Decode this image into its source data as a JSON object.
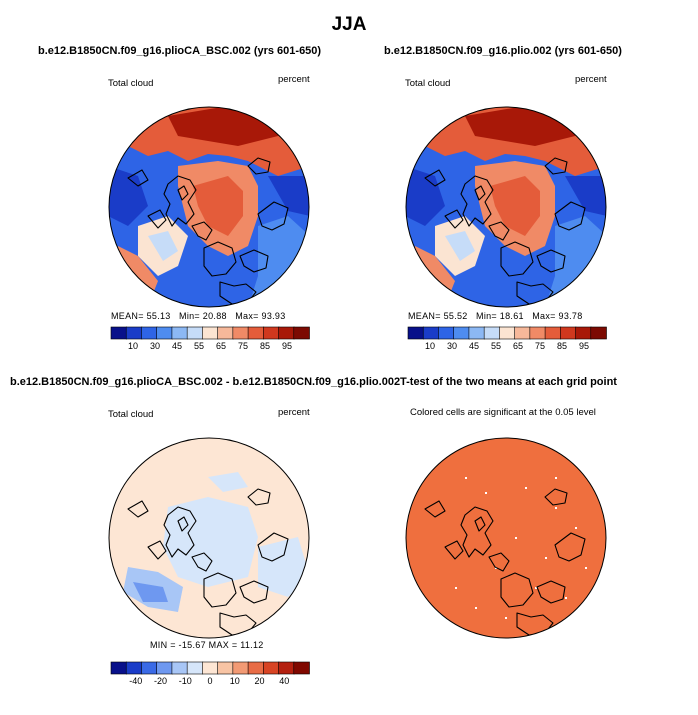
{
  "page": {
    "title": "JJA"
  },
  "panels": [
    {
      "id": "p1",
      "title": "b.e12.B1850CN.f09_g16.plioCA_BSC.002 (yrs 601-650)",
      "left_label": "Total cloud",
      "right_label": "percent",
      "stats": {
        "mean_label": "MEAN=",
        "mean": "55.13",
        "min_label": "Min=",
        "min": "20.88",
        "max_label": "Max=",
        "max": "93.93"
      },
      "colorbar": {
        "ticks": [
          "10",
          "30",
          "45",
          "55",
          "65",
          "75",
          "85",
          "95"
        ]
      }
    },
    {
      "id": "p2",
      "title": "b.e12.B1850CN.f09_g16.plio.002 (yrs 601-650)",
      "left_label": "Total cloud",
      "right_label": "percent",
      "stats": {
        "mean_label": "MEAN=",
        "mean": "55.52",
        "min_label": "Min=",
        "min": "18.61",
        "max_label": "Max=",
        "max": "93.78"
      },
      "colorbar": {
        "ticks": [
          "10",
          "30",
          "45",
          "55",
          "65",
          "75",
          "85",
          "95"
        ]
      }
    },
    {
      "id": "p3",
      "title": "b.e12.B1850CN.f09_g16.plioCA_BSC.002 - b.e12.B1850CN.f09_g16.plio.002",
      "left_label": "Total cloud",
      "right_label": "percent",
      "stats_text": "MIN = -15.67  MAX = 11.12",
      "colorbar": {
        "ticks": [
          "-40",
          "-20",
          "-10",
          "0",
          "10",
          "20",
          "40"
        ]
      }
    },
    {
      "id": "p4",
      "title": "T-test of the two means at each grid point",
      "subtitle": "Colored cells are significant at the 0.05 level"
    }
  ],
  "colors": {
    "abs_scale": [
      "#08108a",
      "#1a3cc8",
      "#2e64e6",
      "#4e8cf0",
      "#8cb8f4",
      "#c6dcf8",
      "#fbe4d2",
      "#f6b89a",
      "#f08a66",
      "#e45c3a",
      "#d0381e",
      "#a81808",
      "#7c0a02"
    ],
    "diff_scale": [
      "#08108a",
      "#1a3cc8",
      "#3a6ae6",
      "#6e98f0",
      "#a8c6f6",
      "#d6e6fa",
      "#fde6d4",
      "#f8c4a4",
      "#f29a74",
      "#e86c46",
      "#d84424",
      "#b42010",
      "#800800"
    ],
    "ttest_fill": "#ef6f3e",
    "coast": "#000000"
  }
}
